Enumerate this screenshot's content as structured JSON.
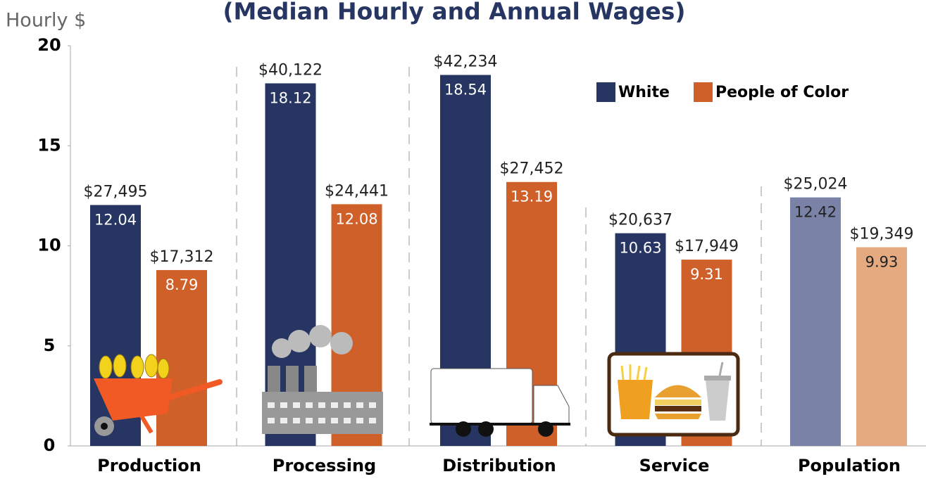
{
  "chart_data": {
    "type": "bar",
    "title": "(Median Hourly and Annual Wages)",
    "y_label": "Hourly $",
    "categories": [
      "Production",
      "Processing",
      "Distribution",
      "Service",
      "Population"
    ],
    "series": [
      {
        "name": "White",
        "color": "#263562",
        "colors": [
          "#263562",
          "#263562",
          "#263562",
          "#263562",
          "#7a82a8"
        ],
        "values": [
          12.04,
          18.12,
          18.54,
          10.63,
          12.42
        ],
        "annual_labels": [
          "$27,495",
          "$40,122",
          "$42,234",
          "$20,637",
          "$25,024"
        ]
      },
      {
        "name": "People of Color",
        "color": "#d0602a",
        "colors": [
          "#d0602a",
          "#d0602a",
          "#d0602a",
          "#d0602a",
          "#e6aa80"
        ],
        "values": [
          8.79,
          12.08,
          13.19,
          9.31,
          9.93
        ],
        "annual_labels": [
          "$17,312",
          "$24,441",
          "$27,452",
          "$17,949",
          "$19,349"
        ]
      }
    ],
    "ylim": [
      0,
      20
    ],
    "yticks": [
      0,
      5,
      10,
      15,
      20
    ],
    "legend": "top-right"
  }
}
